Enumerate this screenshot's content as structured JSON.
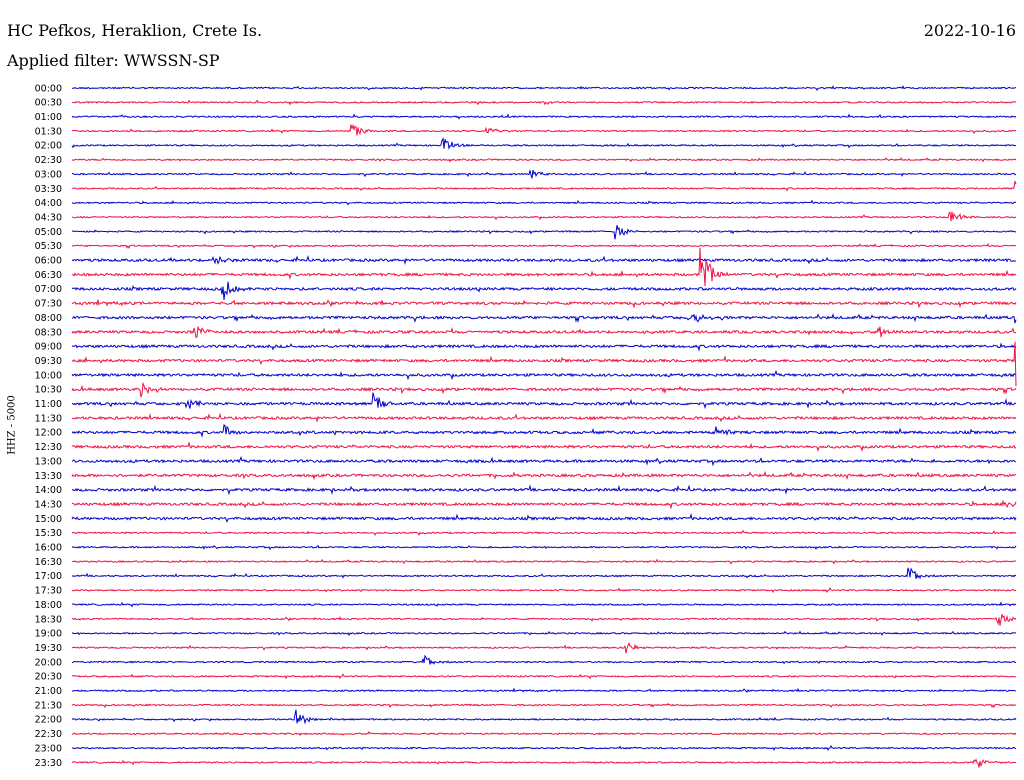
{
  "header": {
    "title": "HC Pefkos, Heraklion, Crete Is.",
    "date": "2022-10-16",
    "filter": "Applied filter: WWSSN-SP"
  },
  "colors": {
    "blue": "#0000cc",
    "red": "#ee1144"
  },
  "chart_data": {
    "type": "line",
    "ylabel": "HHZ - 5000",
    "row_labels": [
      "00:00",
      "00:30",
      "01:00",
      "01:30",
      "02:00",
      "02:30",
      "03:00",
      "03:30",
      "04:00",
      "04:30",
      "05:00",
      "05:30",
      "06:00",
      "06:30",
      "07:00",
      "07:30",
      "08:00",
      "08:30",
      "09:00",
      "09:30",
      "10:00",
      "10:30",
      "11:00",
      "11:30",
      "12:00",
      "12:30",
      "13:00",
      "13:30",
      "14:00",
      "14:30",
      "15:00",
      "15:30",
      "16:00",
      "16:30",
      "17:00",
      "17:30",
      "18:00",
      "18:30",
      "19:00",
      "19:30",
      "20:00",
      "20:30",
      "21:00",
      "21:30",
      "22:00",
      "22:30",
      "23:00",
      "23:30"
    ],
    "row_minutes": 30,
    "events": [
      {
        "row": 3,
        "minute": 8.9,
        "amp": 8
      },
      {
        "row": 4,
        "minute": 11.8,
        "amp": 9
      },
      {
        "row": 3,
        "minute": 13.2,
        "amp": 5
      },
      {
        "row": 6,
        "minute": 14.6,
        "amp": 6
      },
      {
        "row": 7,
        "minute": 30.0,
        "amp": 14
      },
      {
        "row": 9,
        "minute": 27.9,
        "amp": 9
      },
      {
        "row": 10,
        "minute": 17.3,
        "amp": 8
      },
      {
        "row": 12,
        "minute": 4.5,
        "amp": 5
      },
      {
        "row": 13,
        "minute": 20.0,
        "amp": 28
      },
      {
        "row": 14,
        "minute": 4.8,
        "amp": 12
      },
      {
        "row": 16,
        "minute": 19.6,
        "amp": 7
      },
      {
        "row": 16,
        "minute": 30.0,
        "amp": 10
      },
      {
        "row": 17,
        "minute": 3.9,
        "amp": 9
      },
      {
        "row": 17,
        "minute": 25.7,
        "amp": 7
      },
      {
        "row": 19,
        "minute": 30.0,
        "amp": 38
      },
      {
        "row": 21,
        "minute": 2.2,
        "amp": 7
      },
      {
        "row": 22,
        "minute": 3.7,
        "amp": 6
      },
      {
        "row": 22,
        "minute": 9.6,
        "amp": 12
      },
      {
        "row": 24,
        "minute": 4.8,
        "amp": 9
      },
      {
        "row": 24,
        "minute": 20.5,
        "amp": 7
      },
      {
        "row": 29,
        "minute": 29.7,
        "amp": 7
      },
      {
        "row": 34,
        "minute": 26.6,
        "amp": 10
      },
      {
        "row": 37,
        "minute": 29.4,
        "amp": 10
      },
      {
        "row": 39,
        "minute": 17.6,
        "amp": 6
      },
      {
        "row": 40,
        "minute": 11.2,
        "amp": 7
      },
      {
        "row": 44,
        "minute": 7.1,
        "amp": 12
      },
      {
        "row": 47,
        "minute": 28.7,
        "amp": 8
      }
    ]
  }
}
